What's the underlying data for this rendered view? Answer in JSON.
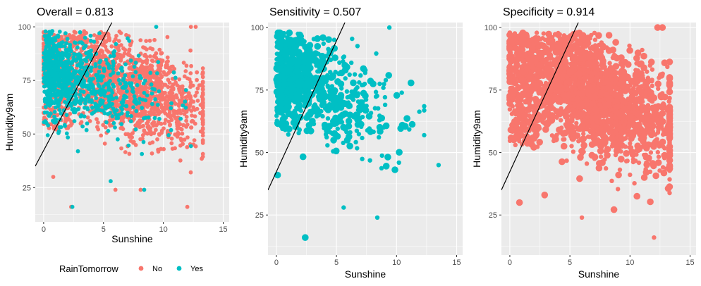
{
  "colors": {
    "no": "#F8766D",
    "yes": "#00BFC4",
    "panel": "#EBEBEB",
    "grid": "#FFFFFF",
    "line": "#000000"
  },
  "legend": {
    "title": "RainTomorrow",
    "placement": "bottom-left",
    "items": [
      {
        "label": "No",
        "color": "#F8766D"
      },
      {
        "label": "Yes",
        "color": "#00BFC4"
      }
    ]
  },
  "chart_data": [
    {
      "type": "scatter",
      "title": "Overall = 0.813",
      "xlabel": "Sunshine",
      "ylabel": "Humidity9am",
      "xlim": [
        -0.7,
        15.5
      ],
      "ylim": [
        9,
        102
      ],
      "xticks": [
        0,
        5,
        10,
        15
      ],
      "yticks": [
        25,
        50,
        75,
        100
      ],
      "xtick_labels": [
        "0",
        "5",
        "10",
        "15"
      ],
      "ytick_labels": [
        "25",
        "50",
        "75",
        "100"
      ],
      "boundary_line": {
        "x": [
          -0.7,
          5.7
        ],
        "y": [
          35,
          102
        ]
      },
      "series": [
        {
          "name": "No",
          "color": "#F8766D",
          "size": "small",
          "points": "many-red",
          "highlight": [
            [
              12.3,
              100
            ],
            [
              12.7,
              100
            ],
            [
              2.3,
              16
            ],
            [
              12,
              16
            ],
            [
              6,
              24
            ],
            [
              8.1,
              24
            ],
            [
              0.8,
              30
            ]
          ]
        },
        {
          "name": "Yes",
          "color": "#00BFC4",
          "size": "small",
          "points": "many-teal",
          "highlight": [
            [
              9.4,
              100
            ],
            [
              2.4,
              16
            ],
            [
              5.6,
              28
            ],
            [
              8.4,
              24
            ]
          ]
        }
      ]
    },
    {
      "type": "scatter",
      "title": "Sensitivity = 0.507",
      "xlabel": "Sunshine",
      "ylabel": "Humidity9am",
      "xlim": [
        -0.7,
        15.5
      ],
      "ylim": [
        9,
        102
      ],
      "xticks": [
        0,
        5,
        10,
        15
      ],
      "yticks": [
        25,
        50,
        75,
        100
      ],
      "xtick_labels": [
        "0",
        "5",
        "10",
        "15"
      ],
      "ytick_labels": [
        "25",
        "50",
        "75",
        "100"
      ],
      "boundary_line": {
        "x": [
          -0.7,
          5.7
        ],
        "y": [
          35,
          102
        ]
      },
      "series": [
        {
          "name": "Yes",
          "color": "#00BFC4",
          "size": "mixed",
          "points": "many-teal",
          "highlight": [
            [
              9.4,
              100
            ],
            [
              2.4,
              16
            ],
            [
              5.6,
              28
            ],
            [
              8.4,
              24
            ],
            [
              13.5,
              45
            ],
            [
              0.1,
              41
            ]
          ]
        }
      ]
    },
    {
      "type": "scatter",
      "title": "Specificity = 0.914",
      "xlabel": "Sunshine",
      "ylabel": "Humidity9am",
      "xlim": [
        -0.7,
        15.5
      ],
      "ylim": [
        9,
        102
      ],
      "xticks": [
        0,
        5,
        10,
        15
      ],
      "yticks": [
        25,
        50,
        75,
        100
      ],
      "xtick_labels": [
        "0",
        "5",
        "10",
        "15"
      ],
      "ytick_labels": [
        "25",
        "50",
        "75",
        "100"
      ],
      "boundary_line": {
        "x": [
          -0.7,
          5.7
        ],
        "y": [
          35,
          102
        ]
      },
      "series": [
        {
          "name": "No",
          "color": "#F8766D",
          "size": "mixed",
          "points": "many-red",
          "highlight": [
            [
              12.3,
              100
            ],
            [
              12.7,
              100
            ],
            [
              0.8,
              30
            ],
            [
              2.9,
              33
            ],
            [
              12,
              16
            ],
            [
              6,
              24
            ]
          ]
        }
      ]
    }
  ]
}
